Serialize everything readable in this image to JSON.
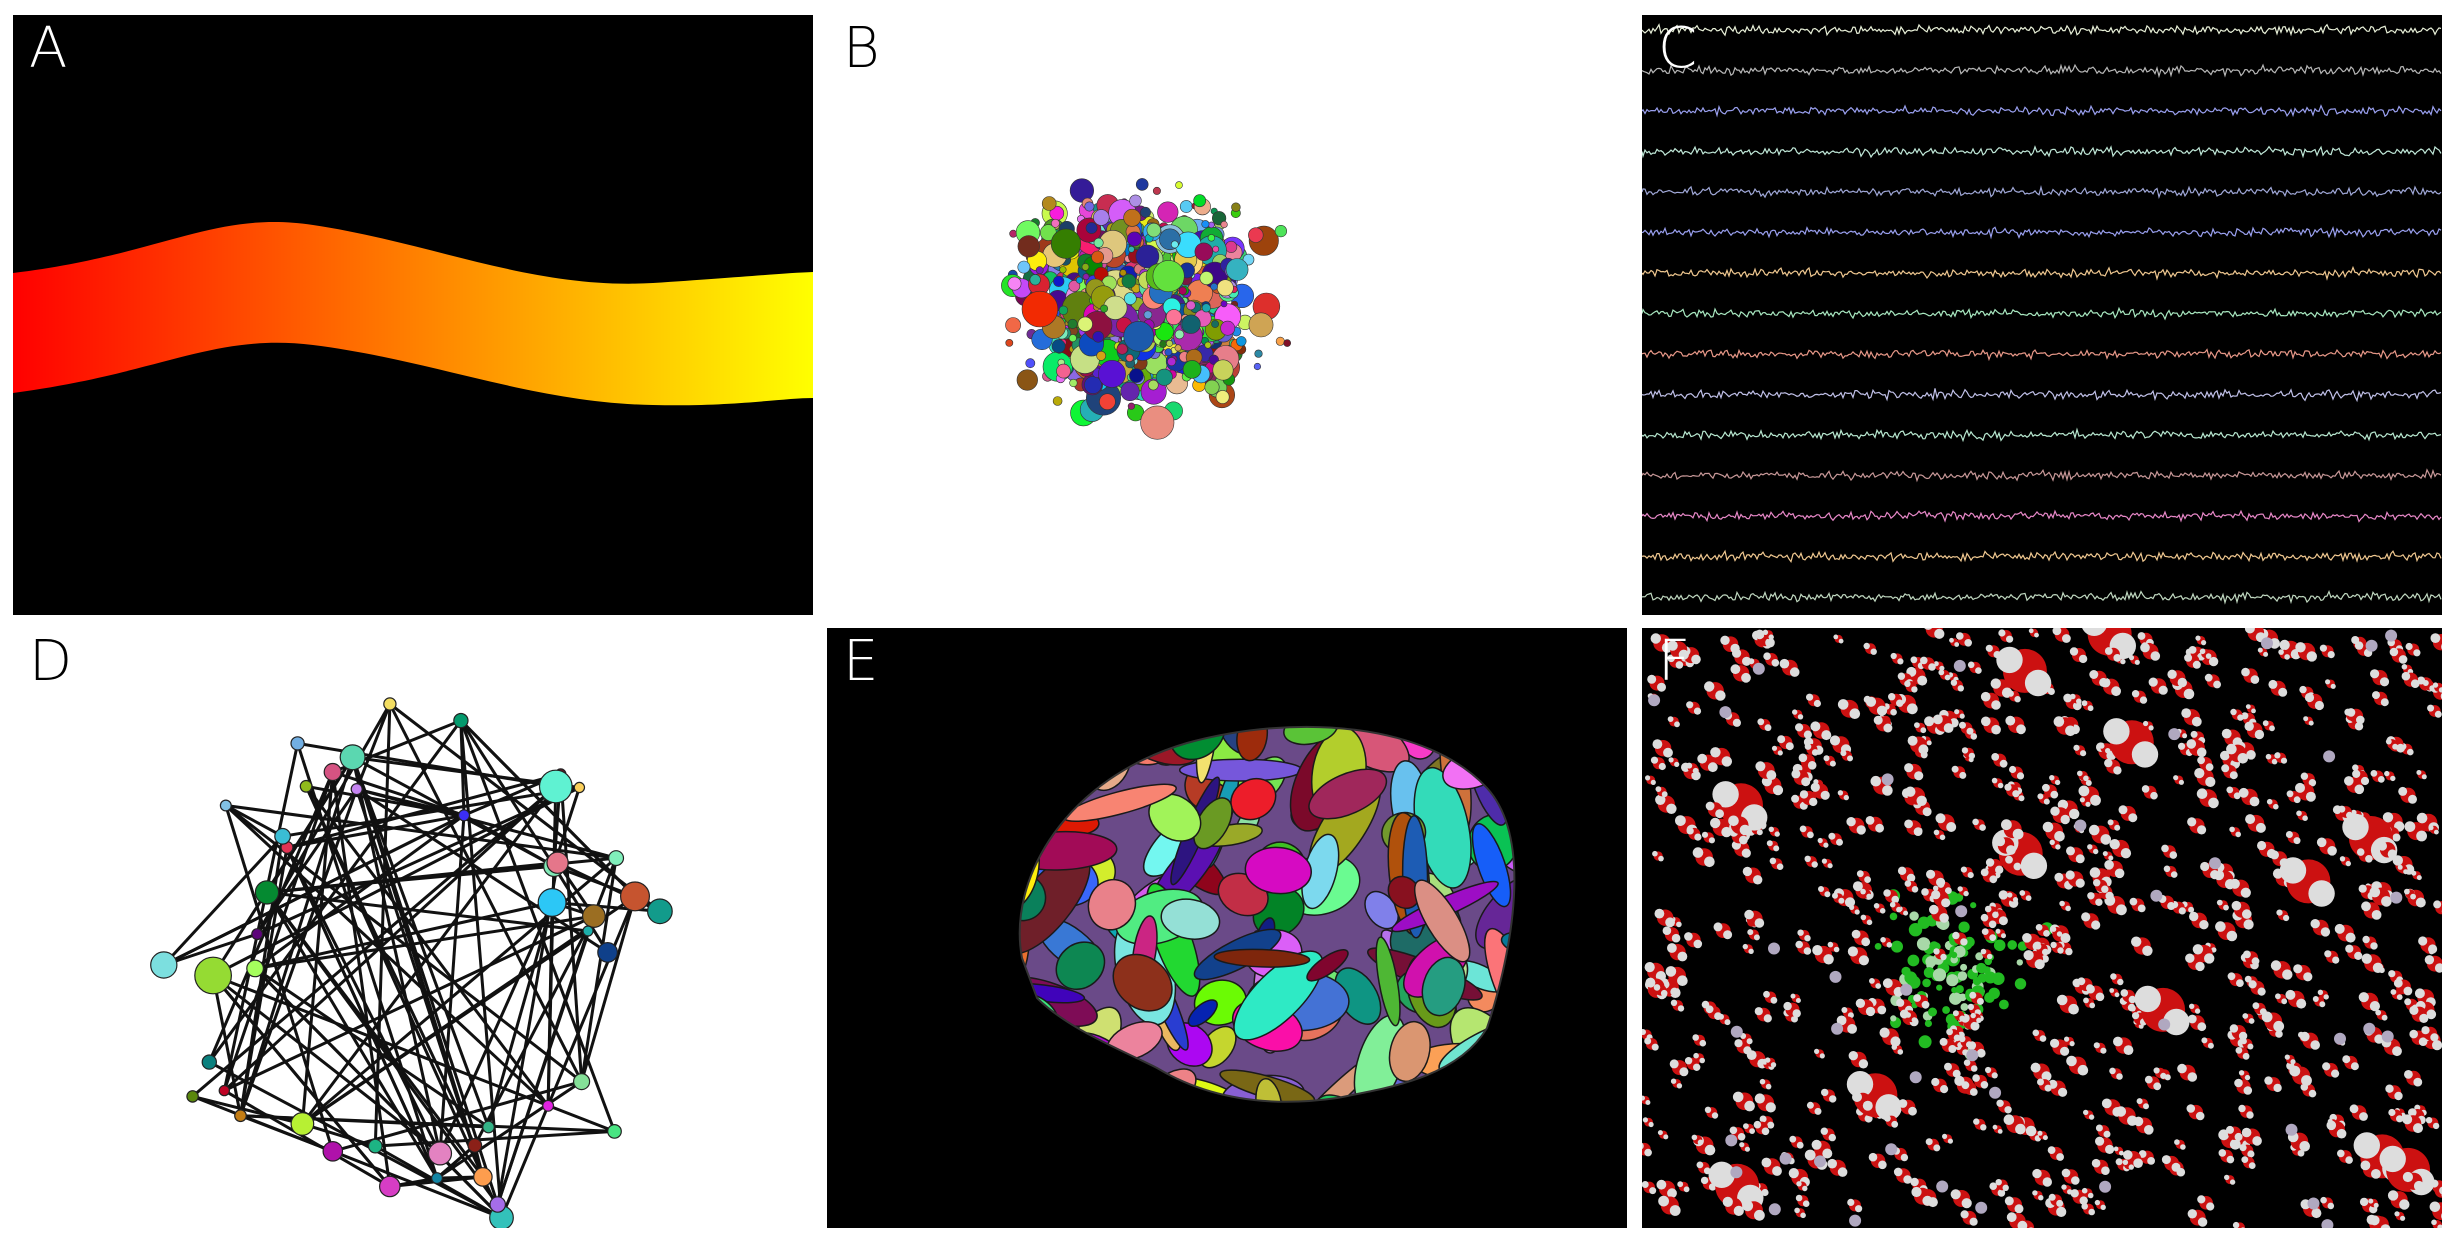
{
  "panels": {
    "A": {
      "label": "A",
      "colors": {
        "start": "#ff0000",
        "end": "#ffff00",
        "background": "#000000"
      }
    },
    "B": {
      "label": "B",
      "background": "#ffffff"
    },
    "C": {
      "label": "C",
      "background": "#000000",
      "trace_colors": [
        "#e8f0d8",
        "#b8b8b8",
        "#9aa0f0",
        "#c0e8d8",
        "#a0a8d8",
        "#9aa0f0",
        "#f0c890",
        "#a8e8c0",
        "#e89888",
        "#c0c0e8",
        "#b8e8d0",
        "#c89898",
        "#e888c8",
        "#f0c890",
        "#c0d8c0"
      ]
    },
    "D": {
      "label": "D",
      "background": "#ffffff"
    },
    "E": {
      "label": "E",
      "background": "#000000"
    },
    "F": {
      "label": "F",
      "background": "#000000",
      "colors": {
        "oxygen": "#cc1111",
        "hydrogen": "#dddddd",
        "ion": "#b0a8c0",
        "cluster": "#22bb22"
      }
    }
  }
}
